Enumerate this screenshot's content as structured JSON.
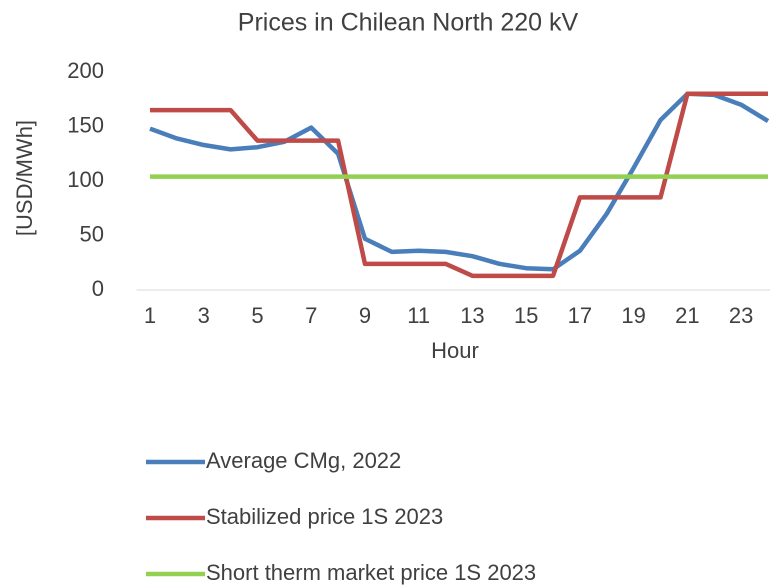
{
  "chart_data": {
    "type": "line",
    "title": "Prices in Chilean North 220 kV",
    "x_label": "Hour",
    "y_label": "[USD/MWh]",
    "categories": [
      1,
      null,
      3,
      null,
      5,
      null,
      7,
      null,
      9,
      null,
      11,
      null,
      13,
      null,
      15,
      null,
      17,
      null,
      19,
      null,
      21,
      null,
      23,
      null
    ],
    "ylim": [
      0,
      200
    ],
    "yticks": [
      0,
      50,
      100,
      150,
      200
    ],
    "grid": false,
    "legend": "bottom",
    "series": [
      {
        "name": "Average CMg, 2022",
        "color": "#4a7ebb",
        "values": [
          148,
          139,
          133,
          129,
          131,
          136,
          149,
          125,
          47,
          35,
          36,
          35,
          31,
          24,
          20,
          19,
          36,
          70,
          112,
          156,
          180,
          179,
          170,
          155
        ]
      },
      {
        "name": "Stabilized price 1S 2023",
        "color": "#be4b48",
        "values": [
          165,
          165,
          165,
          165,
          137,
          137,
          137,
          137,
          24,
          24,
          24,
          24,
          13,
          13,
          13,
          13,
          85,
          85,
          85,
          85,
          180,
          180,
          180,
          180
        ]
      },
      {
        "name": "Short therm market price 1S 2023",
        "color": "#92d050",
        "values": [
          104,
          104,
          104,
          104,
          104,
          104,
          104,
          104,
          104,
          104,
          104,
          104,
          104,
          104,
          104,
          104,
          104,
          104,
          104,
          104,
          104,
          104,
          104,
          104
        ]
      }
    ]
  }
}
